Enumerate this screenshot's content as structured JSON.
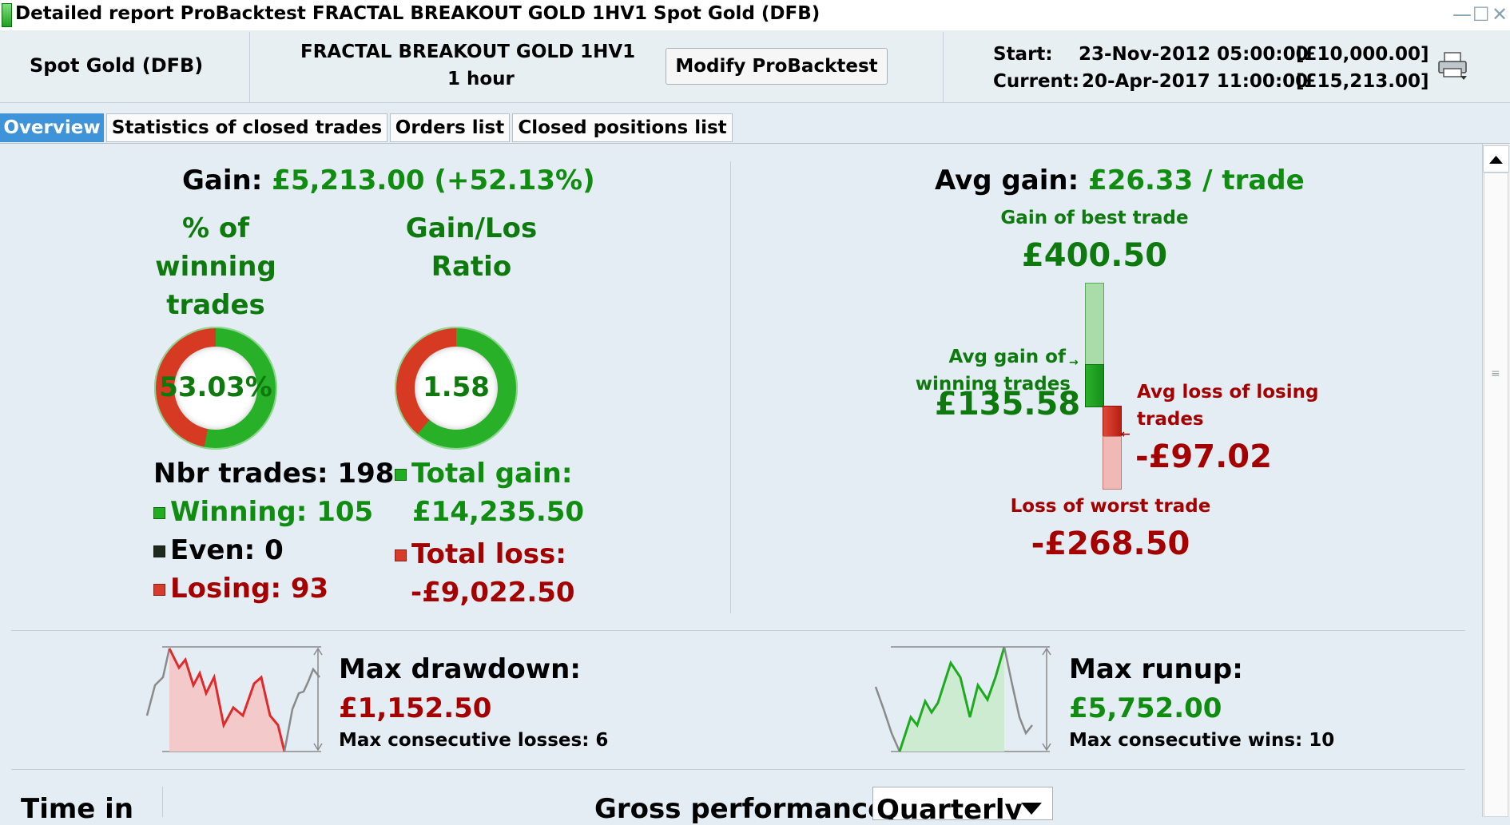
{
  "window": {
    "title": "Detailed report ProBacktest FRACTAL BREAKOUT GOLD 1HV1 Spot Gold (DFB)",
    "minimize_glyph": "—",
    "maximize_glyph": "☐",
    "close_glyph": "✕"
  },
  "header": {
    "instrument": "Spot Gold (DFB)",
    "system_name": "FRACTAL BREAKOUT GOLD 1HV1",
    "timeframe": "1 hour",
    "modify_label": "Modify ProBacktest",
    "start_label": "Start:",
    "start_date": "23-Nov-2012 05:00:00",
    "start_capital": "[£10,000.00]",
    "current_label": "Current:",
    "current_date": "20-Apr-2017 11:00:00",
    "current_capital": "[£15,213.00]",
    "print_icon": "printer-icon"
  },
  "tabs": [
    {
      "label": "Overview",
      "active": true
    },
    {
      "label": "Statistics of closed trades",
      "active": false
    },
    {
      "label": "Orders list",
      "active": false
    },
    {
      "label": "Closed positions list",
      "active": false
    }
  ],
  "overview": {
    "gain_label": "Gain:",
    "gain_value": "£5,213.00 (+52.13%)",
    "pct_winning_label_1": "% of",
    "pct_winning_label_2": "winning",
    "pct_winning_label_3": "trades",
    "pct_winning_value": "53.03%",
    "pct_winning_fraction": 0.5303,
    "ratio_label_1": "Gain/Los",
    "ratio_label_2": "Ratio",
    "ratio_value": "1.58",
    "ratio_fraction": 0.612,
    "nbr_trades": "Nbr trades: 198",
    "winning": "Winning: 105",
    "even": "Even: 0",
    "losing": "Losing: 93",
    "total_gain_label": "Total gain:",
    "total_gain_value": "£14,235.50",
    "total_loss_label": "Total loss:",
    "total_loss_value": "-£9,022.50",
    "avg_gain_label": "Avg gain:",
    "avg_gain_value": "£26.33 / trade",
    "best_trade_label": "Gain of best trade",
    "best_trade_value": "£400.50",
    "avg_win_label_1": "Avg gain of",
    "avg_win_label_2": "winning trades",
    "avg_win_value": "£135.58",
    "avg_loss_label_1": "Avg loss of losing",
    "avg_loss_label_2": "trades",
    "avg_loss_value": "-£97.02",
    "worst_trade_label": "Loss of worst trade",
    "worst_trade_value": "-£268.50",
    "max_drawdown_label": "Max drawdown:",
    "max_drawdown_value": "£1,152.50",
    "max_losses_label": "Max consecutive losses: 6",
    "max_runup_label": "Max runup:",
    "max_runup_value": "£5,752.00",
    "max_wins_label": "Max consecutive wins: 10",
    "time_in_label": "Time in",
    "gross_perf_label": "Gross performance",
    "period_value": "Quarterly"
  },
  "colors": {
    "accent_blue": "#3f93d8",
    "gain_green": "#108c10",
    "loss_red": "#a50000",
    "bg": "#e3edf3"
  }
}
